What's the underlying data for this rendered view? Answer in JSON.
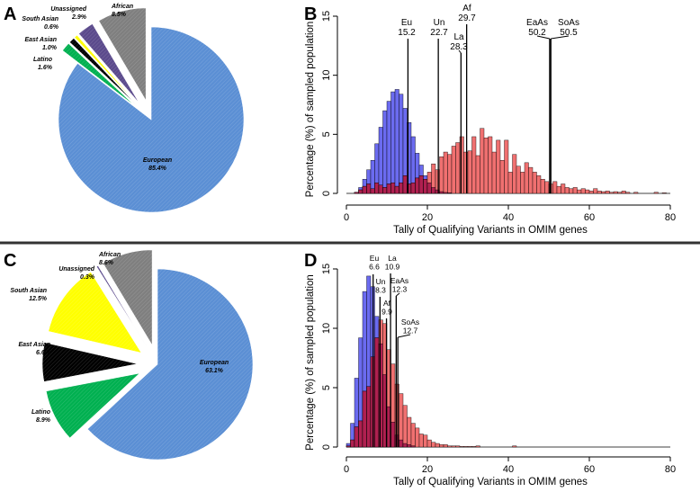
{
  "colors": {
    "european": "#5b8fd4",
    "african": "#7f7f7f",
    "unassigned": "#5b4a8c",
    "south_asian": "#ffff00",
    "east_asian": "#000000",
    "latino": "#00b050",
    "hist_blue": "#6b6bf0",
    "hist_red": "#f07070",
    "hist_overlap": "#b02050",
    "divider": "#333333"
  },
  "chart_data": [
    {
      "panel": "A",
      "type": "pie",
      "slices": [
        {
          "key": "european",
          "name": "European",
          "pct": "85.4%",
          "value": 85.4,
          "exploded": false
        },
        {
          "key": "latino",
          "name": "Latino",
          "pct": "1.6%",
          "value": 1.6,
          "exploded": true
        },
        {
          "key": "east_asian",
          "name": "East Asian",
          "pct": "1.0%",
          "value": 1.0,
          "exploded": true
        },
        {
          "key": "south_asian",
          "name": "South Asian",
          "pct": "0.6%",
          "value": 0.6,
          "exploded": true
        },
        {
          "key": "unassigned",
          "name": "Unassigned",
          "pct": "2.9%",
          "value": 2.9,
          "exploded": true
        },
        {
          "key": "african",
          "name": "African",
          "pct": "8.5%",
          "value": 8.5,
          "exploded": true
        }
      ]
    },
    {
      "panel": "B",
      "type": "bar",
      "xlabel": "Tally of Qualifying Variants in OMIM genes",
      "ylabel": "Percentage (%) of sampled population",
      "xlim": [
        0,
        80
      ],
      "ylim": [
        0,
        15
      ],
      "xticks": [
        "0",
        "20",
        "40",
        "60",
        "80"
      ],
      "yticks": [
        "0",
        "5",
        "10",
        "15"
      ],
      "binwidth": 1,
      "blue_start": 2,
      "blue_values": [
        0.1,
        0.5,
        1.2,
        2.0,
        2.8,
        4.2,
        5.6,
        7.0,
        7.8,
        8.6,
        8.8,
        8.4,
        7.2,
        6.0,
        4.8,
        3.4,
        2.4,
        1.5,
        0.9,
        0.5,
        0.3,
        0.15,
        0.08,
        0.05
      ],
      "red_start": 2,
      "red_values": [
        0.1,
        0.3,
        0.6,
        0.8,
        0.4,
        0.9,
        0.7,
        0.5,
        0.8,
        0.9,
        0.6,
        0.9,
        1.5,
        0.8,
        0.9,
        1.3,
        1.5,
        1.2,
        1.8,
        2.5,
        2.0,
        3.1,
        3.5,
        3.3,
        4.0,
        4.3,
        4.8,
        3.5,
        3.6,
        4.8,
        3.2,
        5.5,
        4.7,
        4.8,
        3.5,
        4.5,
        2.8,
        4.5,
        1.8,
        3.3,
        2.3,
        1.8,
        2.6,
        2.2,
        1.8,
        1.5,
        1.2,
        1.0,
        0.8,
        1.0,
        0.6,
        0.8,
        0.5,
        0.4,
        0.5,
        0.3,
        0.4,
        0.3,
        0.2,
        0.4,
        0.2,
        0.15,
        0.2,
        0.1,
        0.15,
        0.1,
        0.2,
        0.1,
        0,
        0.1,
        0,
        0,
        0,
        0,
        0.1,
        0,
        0.05
      ],
      "medians": [
        {
          "name": "Eu",
          "value": "15.2",
          "x": 15.2
        },
        {
          "name": "Un",
          "value": "22.7",
          "x": 22.7
        },
        {
          "name": "La",
          "value": "28.3",
          "x": 28.3
        },
        {
          "name": "Af",
          "value": "29.7",
          "x": 29.7
        },
        {
          "name": "EaAs",
          "value": "50.2",
          "x": 50.2
        },
        {
          "name": "SoAs",
          "value": "50.5",
          "x": 50.5
        }
      ]
    },
    {
      "panel": "C",
      "type": "pie",
      "slices": [
        {
          "key": "european",
          "name": "European",
          "pct": "63.1%",
          "value": 63.1,
          "exploded": false
        },
        {
          "key": "latino",
          "name": "Latino",
          "pct": "8.9%",
          "value": 8.9,
          "exploded": true
        },
        {
          "key": "east_asian",
          "name": "East Asian",
          "pct": "6.6%",
          "value": 6.6,
          "exploded": true
        },
        {
          "key": "south_asian",
          "name": "South Asian",
          "pct": "12.5%",
          "value": 12.5,
          "exploded": true
        },
        {
          "key": "unassigned",
          "name": "Unassigned",
          "pct": "0.3%",
          "value": 0.3,
          "exploded": true
        },
        {
          "key": "african",
          "name": "African",
          "pct": "8.6%",
          "value": 8.6,
          "exploded": true
        }
      ]
    },
    {
      "panel": "D",
      "type": "bar",
      "xlabel": "Tally of Qualifying Variants in OMIM genes",
      "ylabel": "Percentage (%) of sampled population",
      "xlim": [
        0,
        80
      ],
      "ylim": [
        0,
        15
      ],
      "xticks": [
        "0",
        "20",
        "40",
        "60",
        "80"
      ],
      "yticks": [
        "0",
        "5",
        "10",
        "15"
      ],
      "binwidth": 1,
      "blue_start": 0,
      "blue_values": [
        0.3,
        2.0,
        5.8,
        9.2,
        13.1,
        14.4,
        13.5,
        11.0,
        8.7,
        6.1,
        3.4,
        2.1,
        1.0,
        0.6,
        0.3,
        0.2,
        0.1
      ],
      "red_start": 0,
      "red_values": [
        0.1,
        0.6,
        1.7,
        2.2,
        4.7,
        5.1,
        7.6,
        9.2,
        10.7,
        10.4,
        8.2,
        7.0,
        5.3,
        4.5,
        3.5,
        2.5,
        2.0,
        1.6,
        1.1,
        1.0,
        0.6,
        0.4,
        0.3,
        0.2,
        0.2,
        0.1,
        0.1,
        0.1,
        0.05,
        0.05,
        0.05,
        0.05,
        0.1,
        0,
        0,
        0,
        0,
        0,
        0,
        0,
        0,
        0.1
      ],
      "medians": [
        {
          "name": "Eu",
          "value": "6.6",
          "x": 6.6
        },
        {
          "name": "Un",
          "value": "8.3",
          "x": 8.3
        },
        {
          "name": "Af",
          "value": "9.9",
          "x": 9.9
        },
        {
          "name": "La",
          "value": "10.9",
          "x": 10.9
        },
        {
          "name": "EaAs",
          "value": "12.3",
          "x": 12.3
        },
        {
          "name": "SoAs",
          "value": "12.7",
          "x": 12.7
        }
      ]
    }
  ]
}
